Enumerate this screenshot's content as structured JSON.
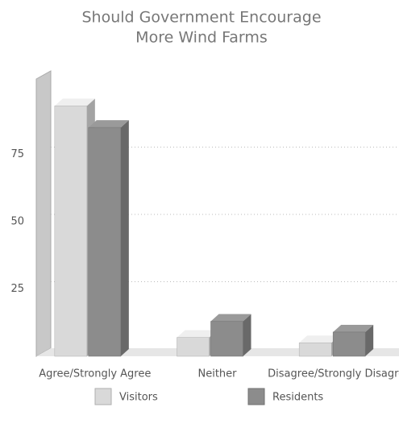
{
  "chart_data": {
    "type": "bar3d",
    "title": "Should Government Encourage",
    "subtitle": "More Wind Farms",
    "categories": [
      "Agree/Strongly Agree",
      "Neither",
      "Disagree/Strongly Disagree"
    ],
    "series": [
      {
        "name": "Visitors",
        "color": "#d9d9d9",
        "values": [
          93,
          7,
          5
        ]
      },
      {
        "name": "Residents",
        "color": "#8c8c8c",
        "values": [
          85,
          13,
          9
        ]
      }
    ],
    "ylim": [
      0,
      100
    ],
    "yticks": [
      25,
      50,
      75
    ],
    "grid": true
  }
}
